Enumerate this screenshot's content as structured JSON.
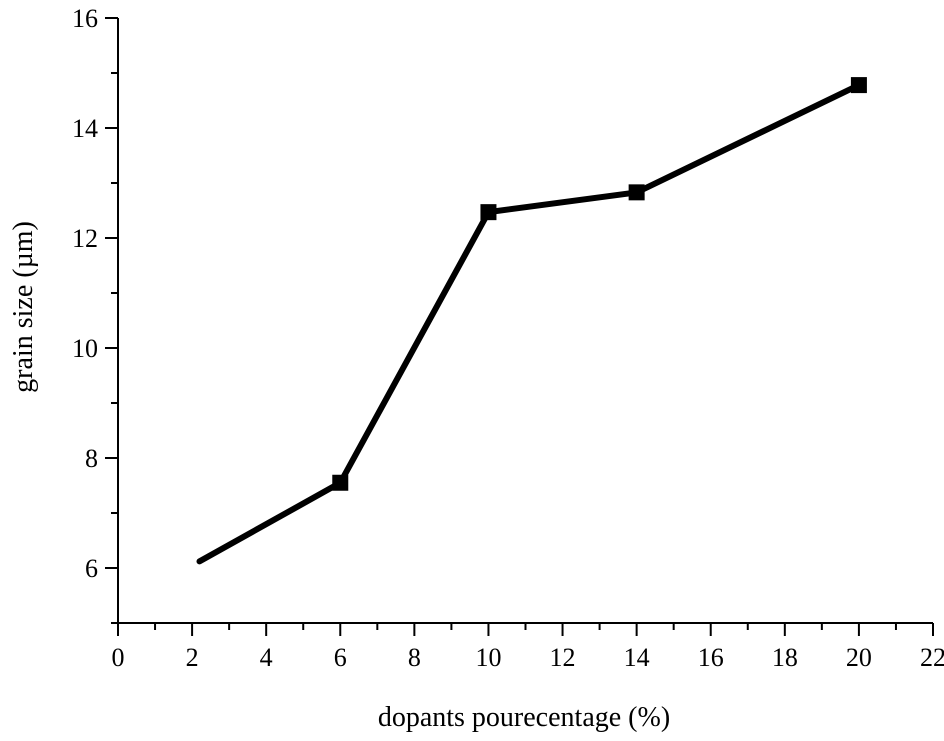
{
  "chart_data": {
    "type": "line",
    "xlabel": "dopants pourecentage (%)",
    "ylabel": "grain size (µm)",
    "xlim": [
      0,
      22
    ],
    "ylim": [
      5,
      16
    ],
    "x_ticks": [
      0,
      2,
      4,
      6,
      8,
      10,
      12,
      14,
      16,
      18,
      20,
      22
    ],
    "y_ticks": [
      6,
      8,
      10,
      12,
      14,
      16
    ],
    "grid": false,
    "series": [
      {
        "x": [
          2.2,
          6,
          10,
          14,
          20
        ],
        "y": [
          6.12,
          7.55,
          12.47,
          12.83,
          14.78
        ],
        "markers": [
          false,
          true,
          true,
          true,
          true
        ],
        "color": "#000000",
        "marker": "square"
      }
    ]
  }
}
